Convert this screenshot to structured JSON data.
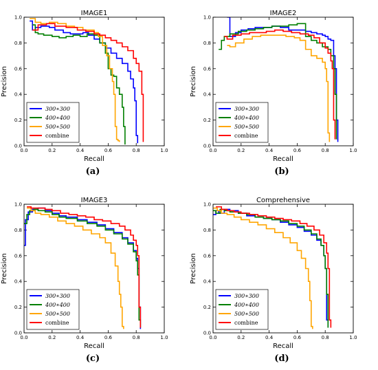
{
  "captions": [
    "(a)",
    "(b)",
    "(c)",
    "(d)"
  ],
  "chart_data": [
    {
      "type": "line",
      "title": "IMAGE1",
      "xlabel": "Recall",
      "ylabel": "Precision",
      "xlim": [
        0,
        1
      ],
      "ylim": [
        0,
        1
      ],
      "xticks": [
        "0.0",
        "0.2",
        "0.4",
        "0.6",
        "0.8",
        "1.0"
      ],
      "yticks": [
        "0.0",
        "0.2",
        "0.4",
        "0.6",
        "0.8",
        "1.0"
      ],
      "grid": false,
      "legend": "lower-left",
      "series": [
        {
          "name": "300∗300",
          "color": "#0000ff",
          "x": [
            0.04,
            0.06,
            0.08,
            0.12,
            0.18,
            0.22,
            0.28,
            0.33,
            0.38,
            0.42,
            0.46,
            0.5,
            0.54,
            0.58,
            0.62,
            0.66,
            0.7,
            0.74,
            0.76,
            0.78,
            0.79,
            0.8,
            0.8,
            0.81
          ],
          "y": [
            0.97,
            0.9,
            0.92,
            0.93,
            0.92,
            0.9,
            0.88,
            0.87,
            0.87,
            0.88,
            0.86,
            0.83,
            0.8,
            0.76,
            0.72,
            0.68,
            0.64,
            0.58,
            0.52,
            0.45,
            0.35,
            0.2,
            0.08,
            0.02
          ]
        },
        {
          "name": "400∗400",
          "color": "#007f00",
          "x": [
            0.06,
            0.08,
            0.1,
            0.14,
            0.2,
            0.25,
            0.3,
            0.35,
            0.4,
            0.45,
            0.5,
            0.54,
            0.58,
            0.6,
            0.62,
            0.64,
            0.66,
            0.68,
            0.7,
            0.71,
            0.72,
            0.72
          ],
          "y": [
            0.94,
            0.88,
            0.87,
            0.86,
            0.85,
            0.84,
            0.85,
            0.86,
            0.85,
            0.87,
            0.86,
            0.8,
            0.72,
            0.6,
            0.55,
            0.54,
            0.45,
            0.4,
            0.3,
            0.15,
            0.05,
            0.01
          ]
        },
        {
          "name": "500∗500",
          "color": "#ffa500",
          "x": [
            0.04,
            0.08,
            0.12,
            0.18,
            0.24,
            0.3,
            0.36,
            0.42,
            0.46,
            0.5,
            0.53,
            0.56,
            0.59,
            0.61,
            0.63,
            0.64,
            0.65,
            0.65,
            0.66,
            0.67,
            0.68
          ],
          "y": [
            0.99,
            0.96,
            0.95,
            0.96,
            0.95,
            0.93,
            0.92,
            0.9,
            0.9,
            0.88,
            0.85,
            0.78,
            0.7,
            0.6,
            0.5,
            0.4,
            0.3,
            0.15,
            0.05,
            0.04,
            0.03
          ]
        },
        {
          "name": "combine",
          "color": "#ff0000",
          "x": [
            0.06,
            0.1,
            0.16,
            0.22,
            0.3,
            0.38,
            0.44,
            0.5,
            0.54,
            0.58,
            0.62,
            0.66,
            0.7,
            0.74,
            0.78,
            0.8,
            0.82,
            0.84,
            0.84,
            0.85,
            0.85
          ],
          "y": [
            0.9,
            0.94,
            0.95,
            0.93,
            0.92,
            0.9,
            0.89,
            0.87,
            0.86,
            0.84,
            0.82,
            0.8,
            0.77,
            0.74,
            0.68,
            0.64,
            0.58,
            0.5,
            0.4,
            0.15,
            0.03
          ]
        }
      ]
    },
    {
      "type": "line",
      "title": "IMAGE2",
      "xlabel": "Recall",
      "ylabel": "Precision",
      "xlim": [
        0,
        1
      ],
      "ylim": [
        0,
        1
      ],
      "xticks": [
        "0.0",
        "0.2",
        "0.4",
        "0.6",
        "0.8",
        "1.0"
      ],
      "yticks": [
        "0.0",
        "0.2",
        "0.4",
        "0.6",
        "0.8",
        "1.0"
      ],
      "grid": false,
      "legend": "lower-left",
      "series": [
        {
          "name": "300∗300",
          "color": "#0000ff",
          "x": [
            0.1,
            0.12,
            0.16,
            0.2,
            0.25,
            0.3,
            0.36,
            0.42,
            0.48,
            0.54,
            0.6,
            0.66,
            0.7,
            0.74,
            0.78,
            0.8,
            0.82,
            0.84,
            0.86,
            0.87,
            0.88,
            0.88,
            0.89
          ],
          "y": [
            1.0,
            0.85,
            0.88,
            0.9,
            0.91,
            0.92,
            0.92,
            0.93,
            0.92,
            0.9,
            0.9,
            0.89,
            0.88,
            0.87,
            0.86,
            0.85,
            0.83,
            0.82,
            0.7,
            0.6,
            0.5,
            0.2,
            0.03
          ]
        },
        {
          "name": "400∗400",
          "color": "#007f00",
          "x": [
            0.04,
            0.06,
            0.08,
            0.12,
            0.18,
            0.24,
            0.3,
            0.36,
            0.42,
            0.48,
            0.54,
            0.6,
            0.64,
            0.66,
            0.7,
            0.74,
            0.78,
            0.82,
            0.84,
            0.86,
            0.87,
            0.88,
            0.88
          ],
          "y": [
            0.75,
            0.82,
            0.85,
            0.87,
            0.89,
            0.9,
            0.91,
            0.92,
            0.93,
            0.93,
            0.94,
            0.95,
            0.95,
            0.85,
            0.82,
            0.8,
            0.77,
            0.75,
            0.7,
            0.6,
            0.4,
            0.1,
            0.05
          ]
        },
        {
          "name": "500∗500",
          "color": "#ffa500",
          "x": [
            0.1,
            0.12,
            0.16,
            0.22,
            0.28,
            0.34,
            0.4,
            0.46,
            0.52,
            0.58,
            0.62,
            0.66,
            0.7,
            0.74,
            0.78,
            0.8,
            0.81,
            0.82,
            0.82,
            0.83
          ],
          "y": [
            0.78,
            0.77,
            0.8,
            0.83,
            0.85,
            0.86,
            0.86,
            0.86,
            0.85,
            0.84,
            0.82,
            0.75,
            0.7,
            0.68,
            0.65,
            0.6,
            0.5,
            0.3,
            0.1,
            0.03
          ]
        },
        {
          "name": "combine",
          "color": "#ff0000",
          "x": [
            0.08,
            0.1,
            0.14,
            0.2,
            0.26,
            0.32,
            0.38,
            0.44,
            0.5,
            0.56,
            0.62,
            0.68,
            0.72,
            0.76,
            0.8,
            0.82,
            0.84,
            0.85,
            0.86,
            0.86,
            0.87
          ],
          "y": [
            0.85,
            0.83,
            0.86,
            0.87,
            0.88,
            0.88,
            0.89,
            0.9,
            0.89,
            0.88,
            0.87,
            0.86,
            0.84,
            0.8,
            0.76,
            0.72,
            0.66,
            0.6,
            0.45,
            0.2,
            0.05
          ]
        }
      ]
    },
    {
      "type": "line",
      "title": "IMAGE3",
      "xlabel": "Recall",
      "ylabel": "Precision",
      "xlim": [
        0,
        1
      ],
      "ylim": [
        0,
        1
      ],
      "xticks": [
        "0.0",
        "0.2",
        "0.4",
        "0.6",
        "0.8",
        "1.0"
      ],
      "yticks": [
        "0.0",
        "0.2",
        "0.4",
        "0.6",
        "0.8",
        "1.0"
      ],
      "grid": false,
      "legend": "lower-left",
      "series": [
        {
          "name": "300∗300",
          "color": "#0000ff",
          "x": [
            0.0,
            0.01,
            0.03,
            0.06,
            0.1,
            0.15,
            0.2,
            0.25,
            0.3,
            0.38,
            0.45,
            0.52,
            0.58,
            0.64,
            0.7,
            0.74,
            0.78,
            0.8,
            0.81,
            0.82,
            0.82,
            0.83,
            0.83
          ],
          "y": [
            0.68,
            0.88,
            0.94,
            0.96,
            0.97,
            0.95,
            0.93,
            0.91,
            0.9,
            0.88,
            0.86,
            0.84,
            0.81,
            0.78,
            0.74,
            0.7,
            0.64,
            0.58,
            0.5,
            0.4,
            0.2,
            0.08,
            0.03
          ]
        },
        {
          "name": "400∗400",
          "color": "#007f00",
          "x": [
            0.0,
            0.02,
            0.04,
            0.07,
            0.1,
            0.15,
            0.2,
            0.25,
            0.3,
            0.38,
            0.45,
            0.52,
            0.58,
            0.64,
            0.7,
            0.74,
            0.78,
            0.8,
            0.81,
            0.82,
            0.82,
            0.83
          ],
          "y": [
            0.85,
            0.92,
            0.95,
            0.96,
            0.95,
            0.94,
            0.92,
            0.9,
            0.89,
            0.87,
            0.85,
            0.83,
            0.8,
            0.77,
            0.73,
            0.69,
            0.63,
            0.56,
            0.45,
            0.3,
            0.1,
            0.04
          ]
        },
        {
          "name": "500∗500",
          "color": "#ffa500",
          "x": [
            0.02,
            0.05,
            0.08,
            0.12,
            0.18,
            0.24,
            0.3,
            0.36,
            0.42,
            0.48,
            0.54,
            0.58,
            0.62,
            0.65,
            0.67,
            0.68,
            0.69,
            0.7,
            0.7,
            0.71
          ],
          "y": [
            0.97,
            0.95,
            0.93,
            0.92,
            0.9,
            0.87,
            0.85,
            0.83,
            0.8,
            0.77,
            0.74,
            0.7,
            0.62,
            0.52,
            0.4,
            0.3,
            0.2,
            0.1,
            0.05,
            0.03
          ]
        },
        {
          "name": "combine",
          "color": "#ff0000",
          "x": [
            0.02,
            0.05,
            0.1,
            0.15,
            0.2,
            0.26,
            0.32,
            0.38,
            0.44,
            0.5,
            0.56,
            0.62,
            0.68,
            0.72,
            0.76,
            0.78,
            0.8,
            0.81,
            0.82,
            0.82,
            0.83
          ],
          "y": [
            0.98,
            0.97,
            0.97,
            0.96,
            0.95,
            0.93,
            0.92,
            0.91,
            0.9,
            0.88,
            0.87,
            0.85,
            0.83,
            0.8,
            0.76,
            0.72,
            0.68,
            0.6,
            0.45,
            0.2,
            0.04
          ]
        }
      ]
    },
    {
      "type": "line",
      "title": "Comprehensive",
      "xlabel": "Recall",
      "ylabel": "Precision",
      "xlim": [
        0,
        1
      ],
      "ylim": [
        0,
        1
      ],
      "xticks": [
        "0.0",
        "0.2",
        "0.4",
        "0.6",
        "0.8",
        "1.0"
      ],
      "yticks": [
        "0.0",
        "0.2",
        "0.4",
        "0.6",
        "0.8",
        "1.0"
      ],
      "grid": false,
      "legend": "lower-left",
      "series": [
        {
          "name": "300∗300",
          "color": "#0000ff",
          "x": [
            0.0,
            0.02,
            0.04,
            0.08,
            0.12,
            0.18,
            0.24,
            0.3,
            0.36,
            0.42,
            0.48,
            0.54,
            0.6,
            0.65,
            0.7,
            0.74,
            0.77,
            0.79,
            0.8,
            0.81,
            0.81,
            0.82
          ],
          "y": [
            0.92,
            0.95,
            0.93,
            0.96,
            0.95,
            0.93,
            0.91,
            0.9,
            0.89,
            0.88,
            0.86,
            0.84,
            0.82,
            0.79,
            0.76,
            0.72,
            0.68,
            0.6,
            0.5,
            0.35,
            0.1,
            0.04
          ]
        },
        {
          "name": "400∗400",
          "color": "#007f00",
          "x": [
            0.0,
            0.02,
            0.05,
            0.08,
            0.12,
            0.18,
            0.24,
            0.3,
            0.36,
            0.42,
            0.48,
            0.54,
            0.6,
            0.65,
            0.7,
            0.74,
            0.77,
            0.79,
            0.8,
            0.81,
            0.82,
            0.82
          ],
          "y": [
            0.95,
            0.93,
            0.96,
            0.95,
            0.94,
            0.93,
            0.92,
            0.9,
            0.89,
            0.88,
            0.87,
            0.85,
            0.83,
            0.8,
            0.77,
            0.73,
            0.68,
            0.6,
            0.5,
            0.3,
            0.1,
            0.04
          ]
        },
        {
          "name": "500∗500",
          "color": "#ffa500",
          "x": [
            0.0,
            0.03,
            0.06,
            0.1,
            0.15,
            0.2,
            0.26,
            0.32,
            0.38,
            0.44,
            0.5,
            0.55,
            0.6,
            0.63,
            0.66,
            0.68,
            0.69,
            0.7,
            0.7,
            0.71
          ],
          "y": [
            0.97,
            0.95,
            0.93,
            0.92,
            0.9,
            0.88,
            0.86,
            0.84,
            0.81,
            0.78,
            0.74,
            0.7,
            0.64,
            0.58,
            0.5,
            0.4,
            0.25,
            0.1,
            0.05,
            0.03
          ]
        },
        {
          "name": "combine",
          "color": "#ff0000",
          "x": [
            0.02,
            0.06,
            0.1,
            0.15,
            0.2,
            0.26,
            0.32,
            0.38,
            0.44,
            0.5,
            0.56,
            0.62,
            0.67,
            0.72,
            0.76,
            0.79,
            0.81,
            0.82,
            0.83,
            0.83,
            0.84
          ],
          "y": [
            0.98,
            0.96,
            0.95,
            0.94,
            0.93,
            0.92,
            0.91,
            0.9,
            0.89,
            0.88,
            0.87,
            0.85,
            0.83,
            0.8,
            0.76,
            0.7,
            0.62,
            0.5,
            0.3,
            0.1,
            0.04
          ]
        }
      ]
    }
  ]
}
